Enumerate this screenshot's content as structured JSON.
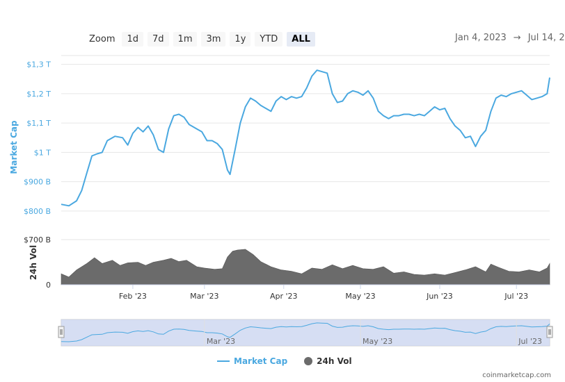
{
  "zoom": {
    "label": "Zoom",
    "buttons": [
      "1d",
      "7d",
      "1m",
      "3m",
      "1y",
      "YTD",
      "ALL"
    ],
    "active": "ALL"
  },
  "date_range": {
    "from": "Jan 4, 2023",
    "separator": "→",
    "to": "Jul 14, 2"
  },
  "legend": {
    "market_cap": "Market Cap",
    "vol": "24h Vol"
  },
  "credit": "coinmarketcap.com",
  "colors": {
    "market_cap_line": "#4aa8e0",
    "volume_fill": "#6b6b6b",
    "navigator_fill": "#ccd6f0",
    "grid": "#e6e6e6"
  },
  "chart_data": {
    "type": "line",
    "x_range": [
      "2023-01-04",
      "2023-07-14"
    ],
    "x_ticks": [
      "Feb '23",
      "Mar '23",
      "Apr '23",
      "May '23",
      "Jun '23",
      "Jul '23"
    ],
    "x_tick_dates": [
      "2023-02-01",
      "2023-03-01",
      "2023-04-01",
      "2023-05-01",
      "2023-06-01",
      "2023-07-01"
    ],
    "navigator_ticks": [
      "Mar '23",
      "May '23",
      "Jul '23"
    ],
    "navigator_tick_dates": [
      "2023-03-01",
      "2023-05-01",
      "2023-07-01"
    ],
    "y_left": {
      "label": "Market Cap",
      "unit": "B",
      "ticks": [
        "$800 B",
        "$900 B",
        "$1 T",
        "$1,1 T",
        "$1,2 T",
        "$1,3 T"
      ],
      "tick_values": [
        800,
        900,
        1000,
        1100,
        1200,
        1300
      ],
      "range": [
        750,
        1330
      ]
    },
    "y_volume": {
      "label": "24h Vol",
      "unit": "B",
      "ticks": [
        "0",
        "$700 B"
      ],
      "tick_values": [
        0,
        700
      ],
      "range": [
        0,
        700
      ]
    },
    "series": [
      {
        "name": "Market Cap",
        "axis": "y_left",
        "points": [
          [
            "2023-01-04",
            823
          ],
          [
            "2023-01-07",
            818
          ],
          [
            "2023-01-10",
            835
          ],
          [
            "2023-01-12",
            870
          ],
          [
            "2023-01-14",
            930
          ],
          [
            "2023-01-16",
            988
          ],
          [
            "2023-01-18",
            995
          ],
          [
            "2023-01-20",
            1000
          ],
          [
            "2023-01-22",
            1040
          ],
          [
            "2023-01-25",
            1055
          ],
          [
            "2023-01-28",
            1050
          ],
          [
            "2023-01-30",
            1025
          ],
          [
            "2023-02-01",
            1065
          ],
          [
            "2023-02-03",
            1085
          ],
          [
            "2023-02-05",
            1070
          ],
          [
            "2023-02-07",
            1090
          ],
          [
            "2023-02-09",
            1060
          ],
          [
            "2023-02-11",
            1010
          ],
          [
            "2023-02-13",
            1000
          ],
          [
            "2023-02-15",
            1080
          ],
          [
            "2023-02-17",
            1125
          ],
          [
            "2023-02-19",
            1130
          ],
          [
            "2023-02-21",
            1120
          ],
          [
            "2023-02-23",
            1095
          ],
          [
            "2023-02-26",
            1080
          ],
          [
            "2023-02-28",
            1070
          ],
          [
            "2023-03-02",
            1040
          ],
          [
            "2023-03-04",
            1040
          ],
          [
            "2023-03-06",
            1030
          ],
          [
            "2023-03-08",
            1010
          ],
          [
            "2023-03-10",
            940
          ],
          [
            "2023-03-11",
            925
          ],
          [
            "2023-03-13",
            1010
          ],
          [
            "2023-03-15",
            1100
          ],
          [
            "2023-03-17",
            1155
          ],
          [
            "2023-03-19",
            1185
          ],
          [
            "2023-03-21",
            1175
          ],
          [
            "2023-03-23",
            1160
          ],
          [
            "2023-03-25",
            1150
          ],
          [
            "2023-03-27",
            1140
          ],
          [
            "2023-03-29",
            1175
          ],
          [
            "2023-03-31",
            1190
          ],
          [
            "2023-04-02",
            1180
          ],
          [
            "2023-04-04",
            1190
          ],
          [
            "2023-04-06",
            1185
          ],
          [
            "2023-04-08",
            1190
          ],
          [
            "2023-04-10",
            1220
          ],
          [
            "2023-04-12",
            1260
          ],
          [
            "2023-04-14",
            1280
          ],
          [
            "2023-04-16",
            1275
          ],
          [
            "2023-04-18",
            1270
          ],
          [
            "2023-04-20",
            1200
          ],
          [
            "2023-04-22",
            1170
          ],
          [
            "2023-04-24",
            1175
          ],
          [
            "2023-04-26",
            1200
          ],
          [
            "2023-04-28",
            1210
          ],
          [
            "2023-04-30",
            1205
          ],
          [
            "2023-05-02",
            1195
          ],
          [
            "2023-05-04",
            1210
          ],
          [
            "2023-05-06",
            1185
          ],
          [
            "2023-05-08",
            1140
          ],
          [
            "2023-05-10",
            1125
          ],
          [
            "2023-05-12",
            1115
          ],
          [
            "2023-05-14",
            1125
          ],
          [
            "2023-05-16",
            1125
          ],
          [
            "2023-05-18",
            1130
          ],
          [
            "2023-05-20",
            1130
          ],
          [
            "2023-05-22",
            1125
          ],
          [
            "2023-05-24",
            1130
          ],
          [
            "2023-05-26",
            1125
          ],
          [
            "2023-05-28",
            1140
          ],
          [
            "2023-05-30",
            1155
          ],
          [
            "2023-06-01",
            1145
          ],
          [
            "2023-06-03",
            1150
          ],
          [
            "2023-06-05",
            1115
          ],
          [
            "2023-06-07",
            1090
          ],
          [
            "2023-06-09",
            1075
          ],
          [
            "2023-06-11",
            1050
          ],
          [
            "2023-06-13",
            1055
          ],
          [
            "2023-06-15",
            1020
          ],
          [
            "2023-06-17",
            1055
          ],
          [
            "2023-06-19",
            1075
          ],
          [
            "2023-06-21",
            1140
          ],
          [
            "2023-06-23",
            1185
          ],
          [
            "2023-06-25",
            1195
          ],
          [
            "2023-06-27",
            1190
          ],
          [
            "2023-06-29",
            1200
          ],
          [
            "2023-07-01",
            1205
          ],
          [
            "2023-07-03",
            1210
          ],
          [
            "2023-07-05",
            1195
          ],
          [
            "2023-07-07",
            1180
          ],
          [
            "2023-07-09",
            1185
          ],
          [
            "2023-07-11",
            1190
          ],
          [
            "2023-07-13",
            1200
          ],
          [
            "2023-07-14",
            1255
          ]
        ]
      },
      {
        "name": "24h Vol",
        "axis": "y_volume",
        "type": "area",
        "points": [
          [
            "2023-01-04",
            170
          ],
          [
            "2023-01-07",
            120
          ],
          [
            "2023-01-10",
            230
          ],
          [
            "2023-01-14",
            330
          ],
          [
            "2023-01-17",
            420
          ],
          [
            "2023-01-20",
            330
          ],
          [
            "2023-01-24",
            380
          ],
          [
            "2023-01-27",
            300
          ],
          [
            "2023-01-30",
            340
          ],
          [
            "2023-02-03",
            350
          ],
          [
            "2023-02-06",
            300
          ],
          [
            "2023-02-09",
            350
          ],
          [
            "2023-02-13",
            380
          ],
          [
            "2023-02-16",
            410
          ],
          [
            "2023-02-19",
            360
          ],
          [
            "2023-02-22",
            380
          ],
          [
            "2023-02-26",
            280
          ],
          [
            "2023-03-01",
            260
          ],
          [
            "2023-03-05",
            240
          ],
          [
            "2023-03-08",
            250
          ],
          [
            "2023-03-10",
            430
          ],
          [
            "2023-03-12",
            520
          ],
          [
            "2023-03-14",
            540
          ],
          [
            "2023-03-17",
            550
          ],
          [
            "2023-03-20",
            470
          ],
          [
            "2023-03-23",
            360
          ],
          [
            "2023-03-27",
            280
          ],
          [
            "2023-03-31",
            230
          ],
          [
            "2023-04-04",
            210
          ],
          [
            "2023-04-08",
            170
          ],
          [
            "2023-04-12",
            260
          ],
          [
            "2023-04-16",
            240
          ],
          [
            "2023-04-20",
            310
          ],
          [
            "2023-04-24",
            250
          ],
          [
            "2023-04-28",
            300
          ],
          [
            "2023-05-02",
            250
          ],
          [
            "2023-05-06",
            240
          ],
          [
            "2023-05-10",
            280
          ],
          [
            "2023-05-14",
            180
          ],
          [
            "2023-05-18",
            200
          ],
          [
            "2023-05-22",
            160
          ],
          [
            "2023-05-26",
            150
          ],
          [
            "2023-05-30",
            170
          ],
          [
            "2023-06-03",
            150
          ],
          [
            "2023-06-07",
            190
          ],
          [
            "2023-06-11",
            230
          ],
          [
            "2023-06-15",
            280
          ],
          [
            "2023-06-19",
            200
          ],
          [
            "2023-06-21",
            320
          ],
          [
            "2023-06-24",
            270
          ],
          [
            "2023-06-28",
            210
          ],
          [
            "2023-07-02",
            200
          ],
          [
            "2023-07-06",
            230
          ],
          [
            "2023-07-10",
            200
          ],
          [
            "2023-07-13",
            260
          ],
          [
            "2023-07-14",
            330
          ]
        ]
      }
    ],
    "navigator": {
      "range_from": "2023-01-04",
      "range_to": "2023-07-14"
    },
    "grid": true,
    "legend_position": "bottom-center"
  }
}
